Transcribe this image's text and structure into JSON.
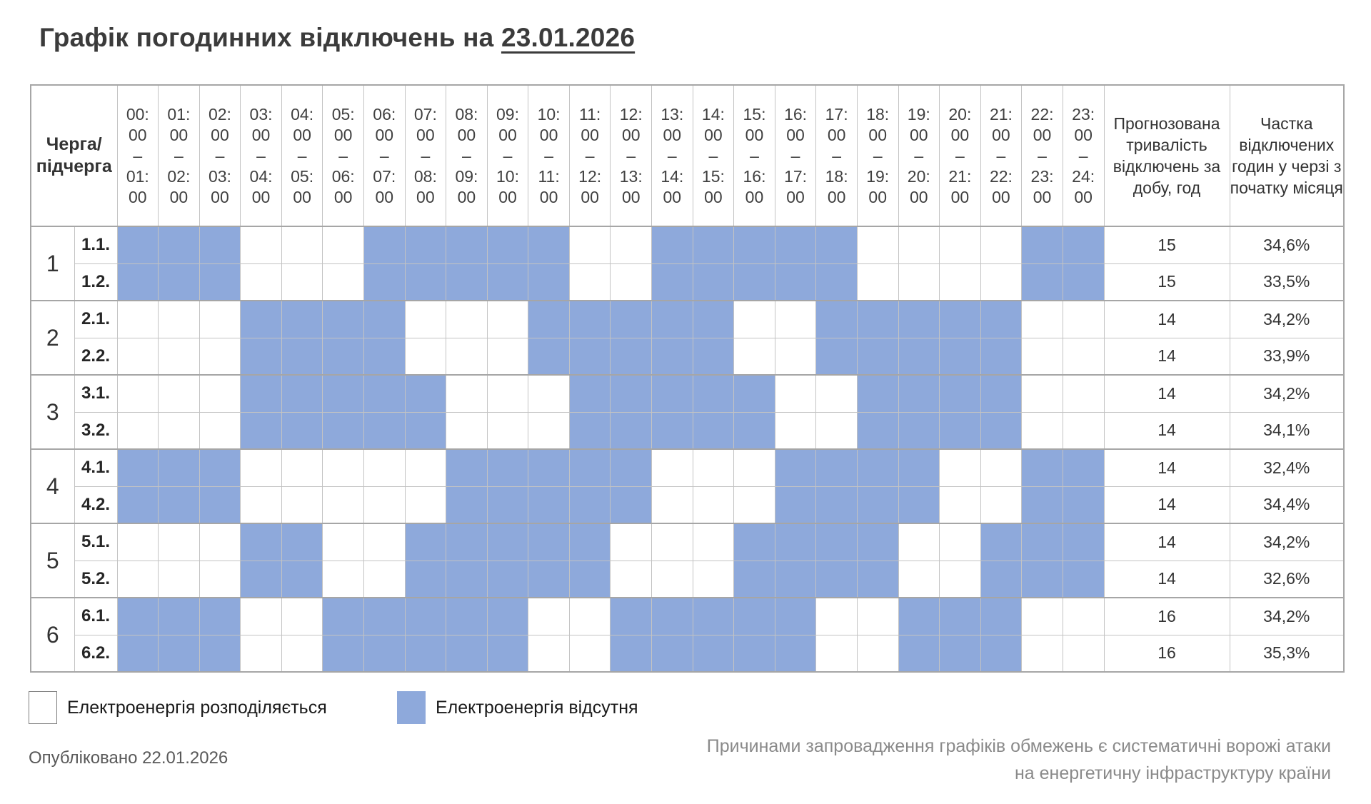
{
  "title": {
    "prefix": "Графік погодинних відключень на ",
    "date": "23.01.2026"
  },
  "legend": {
    "available": "Електроенергія розподіляється",
    "outage": "Електроенергія відсутня"
  },
  "footer": {
    "published": "Опубліковано 22.01.2026",
    "note_line1": "Причинами запровадження графіків обмежень є систематичні ворожі атаки",
    "note_line2": "на енергетичну інфраструктуру країни"
  },
  "chart_data": {
    "type": "table",
    "title": "Графік погодинних відключень на 23.01.2026",
    "corner_header_line1": "Черга/",
    "corner_header_line2": "підчерга",
    "time_slots": [
      [
        "00:00",
        "01:00"
      ],
      [
        "01:00",
        "02:00"
      ],
      [
        "02:00",
        "03:00"
      ],
      [
        "03:00",
        "04:00"
      ],
      [
        "04:00",
        "05:00"
      ],
      [
        "05:00",
        "06:00"
      ],
      [
        "06:00",
        "07:00"
      ],
      [
        "07:00",
        "08:00"
      ],
      [
        "08:00",
        "09:00"
      ],
      [
        "09:00",
        "10:00"
      ],
      [
        "10:00",
        "11:00"
      ],
      [
        "11:00",
        "12:00"
      ],
      [
        "12:00",
        "13:00"
      ],
      [
        "13:00",
        "14:00"
      ],
      [
        "14:00",
        "15:00"
      ],
      [
        "15:00",
        "16:00"
      ],
      [
        "16:00",
        "17:00"
      ],
      [
        "17:00",
        "18:00"
      ],
      [
        "18:00",
        "19:00"
      ],
      [
        "19:00",
        "20:00"
      ],
      [
        "20:00",
        "21:00"
      ],
      [
        "21:00",
        "22:00"
      ],
      [
        "22:00",
        "23:00"
      ],
      [
        "23:00",
        "24:00"
      ]
    ],
    "summary_headers": [
      "Прогнозована тривалість відключень за добу, год",
      "Частка відключених годин у черзі з початку місяця"
    ],
    "cell_states": {
      "on": "Електроенергія розподіляється",
      "off": "Електроенергія відсутня"
    },
    "colors": {
      "outage_fill": "#8EA9DB",
      "available_fill": "#FFFFFF"
    },
    "rows": [
      {
        "queue": "1",
        "subqueue": "1.1.",
        "outage_hours": [
          0,
          1,
          2,
          6,
          7,
          8,
          9,
          10,
          13,
          14,
          15,
          16,
          17,
          22,
          23
        ],
        "duration_hours": "15",
        "month_share": "34,6%"
      },
      {
        "queue": "1",
        "subqueue": "1.2.",
        "outage_hours": [
          0,
          1,
          2,
          6,
          7,
          8,
          9,
          10,
          13,
          14,
          15,
          16,
          17,
          22,
          23
        ],
        "duration_hours": "15",
        "month_share": "33,5%"
      },
      {
        "queue": "2",
        "subqueue": "2.1.",
        "outage_hours": [
          3,
          4,
          5,
          6,
          10,
          11,
          12,
          13,
          14,
          17,
          18,
          19,
          20,
          21
        ],
        "duration_hours": "14",
        "month_share": "34,2%"
      },
      {
        "queue": "2",
        "subqueue": "2.2.",
        "outage_hours": [
          3,
          4,
          5,
          6,
          10,
          11,
          12,
          13,
          14,
          17,
          18,
          19,
          20,
          21
        ],
        "duration_hours": "14",
        "month_share": "33,9%"
      },
      {
        "queue": "3",
        "subqueue": "3.1.",
        "outage_hours": [
          3,
          4,
          5,
          6,
          7,
          11,
          12,
          13,
          14,
          15,
          18,
          19,
          20,
          21
        ],
        "duration_hours": "14",
        "month_share": "34,2%"
      },
      {
        "queue": "3",
        "subqueue": "3.2.",
        "outage_hours": [
          3,
          4,
          5,
          6,
          7,
          11,
          12,
          13,
          14,
          15,
          18,
          19,
          20,
          21
        ],
        "duration_hours": "14",
        "month_share": "34,1%"
      },
      {
        "queue": "4",
        "subqueue": "4.1.",
        "outage_hours": [
          0,
          1,
          2,
          8,
          9,
          10,
          11,
          12,
          16,
          17,
          18,
          19,
          22,
          23
        ],
        "duration_hours": "14",
        "month_share": "32,4%"
      },
      {
        "queue": "4",
        "subqueue": "4.2.",
        "outage_hours": [
          0,
          1,
          2,
          8,
          9,
          10,
          11,
          12,
          16,
          17,
          18,
          19,
          22,
          23
        ],
        "duration_hours": "14",
        "month_share": "34,4%"
      },
      {
        "queue": "5",
        "subqueue": "5.1.",
        "outage_hours": [
          3,
          4,
          7,
          8,
          9,
          10,
          11,
          15,
          16,
          17,
          18,
          21,
          22,
          23
        ],
        "duration_hours": "14",
        "month_share": "34,2%"
      },
      {
        "queue": "5",
        "subqueue": "5.2.",
        "outage_hours": [
          3,
          4,
          7,
          8,
          9,
          10,
          11,
          15,
          16,
          17,
          18,
          21,
          22,
          23
        ],
        "duration_hours": "14",
        "month_share": "32,6%"
      },
      {
        "queue": "6",
        "subqueue": "6.1.",
        "outage_hours": [
          0,
          1,
          2,
          5,
          6,
          7,
          8,
          9,
          12,
          13,
          14,
          15,
          16,
          19,
          20,
          21
        ],
        "duration_hours": "16",
        "month_share": "34,2%"
      },
      {
        "queue": "6",
        "subqueue": "6.2.",
        "outage_hours": [
          0,
          1,
          2,
          5,
          6,
          7,
          8,
          9,
          12,
          13,
          14,
          15,
          16,
          19,
          20,
          21
        ],
        "duration_hours": "16",
        "month_share": "35,3%"
      }
    ]
  }
}
